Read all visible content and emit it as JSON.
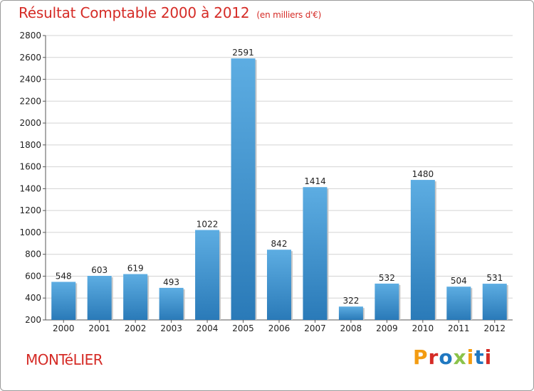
{
  "chart_data": {
    "type": "bar",
    "title": "Résultat Comptable 2000 à 2012",
    "subtitle": "(en milliers d'€)",
    "categories": [
      "2000",
      "2001",
      "2002",
      "2003",
      "2004",
      "2005",
      "2006",
      "2007",
      "2008",
      "2009",
      "2010",
      "2011",
      "2012"
    ],
    "values": [
      548,
      603,
      619,
      493,
      1022,
      2591,
      842,
      1414,
      322,
      532,
      1480,
      504,
      531
    ],
    "ylim": [
      200,
      2800
    ],
    "yticks": [
      200,
      400,
      600,
      800,
      1000,
      1200,
      1400,
      1600,
      1800,
      2000,
      2200,
      2400,
      2600,
      2800
    ],
    "xlabel": "",
    "ylabel": "",
    "grid": true
  },
  "footer": {
    "city": "MONTéLIER",
    "logo": "Proxiti"
  },
  "colors": {
    "title": "#d52b26",
    "bar_light": "#5dade2",
    "bar_dark": "#2a7ab8",
    "grid": "#d3d3d3",
    "logo": [
      "#f39c12",
      "#d52b26",
      "#1f78c1",
      "#8bc34a",
      "#f39c12",
      "#1f78c1",
      "#d52b26"
    ]
  }
}
